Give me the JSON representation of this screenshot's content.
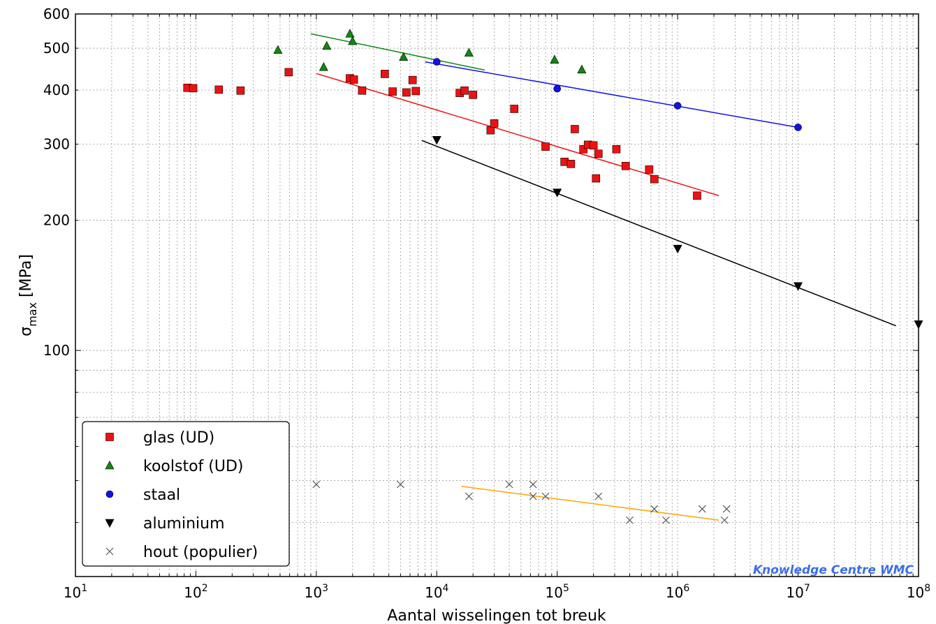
{
  "chart_data": {
    "type": "scatter",
    "xlabel": "Aantal wisselingen tot breuk",
    "ylabel_main": "σ",
    "ylabel_sub": "max",
    "ylabel_unit": " [MPa]",
    "xscale": "log",
    "yscale": "log",
    "xlim": [
      10,
      100000000
    ],
    "ylim": [
      30,
      600
    ],
    "grid": true,
    "legend_position": "lower-left",
    "watermark": "Knowledge Centre WMC",
    "x_ticks": [
      {
        "value": 10,
        "base": "10",
        "exp": "1"
      },
      {
        "value": 100,
        "base": "10",
        "exp": "2"
      },
      {
        "value": 1000,
        "base": "10",
        "exp": "3"
      },
      {
        "value": 10000,
        "base": "10",
        "exp": "4"
      },
      {
        "value": 100000,
        "base": "10",
        "exp": "5"
      },
      {
        "value": 1000000,
        "base": "10",
        "exp": "6"
      },
      {
        "value": 10000000,
        "base": "10",
        "exp": "7"
      },
      {
        "value": 100000000,
        "base": "10",
        "exp": "8"
      }
    ],
    "y_ticks": [
      {
        "value": 100,
        "label": "100"
      },
      {
        "value": 200,
        "label": "200"
      },
      {
        "value": 300,
        "label": "300"
      },
      {
        "value": 400,
        "label": "400"
      },
      {
        "value": 500,
        "label": "500"
      },
      {
        "value": 600,
        "label": "600"
      }
    ],
    "series": [
      {
        "name": "glas (UD)",
        "marker": "square",
        "color": "#ee1111",
        "points": [
          [
            85,
            405
          ],
          [
            95,
            404
          ],
          [
            155,
            401
          ],
          [
            235,
            399
          ],
          [
            590,
            440
          ],
          [
            1900,
            426
          ],
          [
            2050,
            423
          ],
          [
            2400,
            399
          ],
          [
            3700,
            436
          ],
          [
            4300,
            397
          ],
          [
            5600,
            395
          ],
          [
            6300,
            422
          ],
          [
            6700,
            398
          ],
          [
            15500,
            394
          ],
          [
            17000,
            399
          ],
          [
            20000,
            390
          ],
          [
            28000,
            323
          ],
          [
            30000,
            335
          ],
          [
            44000,
            362
          ],
          [
            80000,
            296
          ],
          [
            115000,
            273
          ],
          [
            130000,
            270
          ],
          [
            140000,
            325
          ],
          [
            165000,
            292
          ],
          [
            180000,
            299
          ],
          [
            200000,
            298
          ],
          [
            210000,
            250
          ],
          [
            220000,
            285
          ],
          [
            310000,
            292
          ],
          [
            370000,
            267
          ],
          [
            580000,
            262
          ],
          [
            640000,
            249
          ],
          [
            1450000,
            228
          ]
        ],
        "fit": [
          [
            1000,
            437
          ],
          [
            2200000,
            228
          ]
        ]
      },
      {
        "name": "koolstof (UD)",
        "marker": "triangle-up",
        "color": "#118811",
        "points": [
          [
            480,
            495
          ],
          [
            1150,
            452
          ],
          [
            1220,
            506
          ],
          [
            1900,
            540
          ],
          [
            2000,
            519
          ],
          [
            5300,
            477
          ],
          [
            18500,
            488
          ],
          [
            95000,
            470
          ],
          [
            160000,
            446
          ]
        ],
        "fit": [
          [
            900,
            540
          ],
          [
            25000,
            445
          ]
        ]
      },
      {
        "name": "staal",
        "marker": "circle",
        "color": "#1111ee",
        "points": [
          [
            10000,
            465
          ],
          [
            100000,
            403
          ],
          [
            1000000,
            368
          ],
          [
            10000000,
            328
          ]
        ],
        "fit": [
          [
            8000,
            465
          ],
          [
            10000000,
            328
          ]
        ]
      },
      {
        "name": "aluminium",
        "marker": "triangle-down",
        "color": "#000000",
        "points": [
          [
            10000,
            307
          ],
          [
            100000,
            232
          ],
          [
            1000000,
            172
          ],
          [
            10000000,
            141
          ],
          [
            100000000,
            115
          ]
        ],
        "fit": [
          [
            7500,
            306
          ],
          [
            65000000,
            114
          ]
        ]
      },
      {
        "name": "hout (populier)",
        "marker": "x",
        "color": "#555555",
        "points": [
          [
            1000,
            49
          ],
          [
            5000,
            49
          ],
          [
            18500,
            46
          ],
          [
            40000,
            49
          ],
          [
            63000,
            49
          ],
          [
            63000,
            46
          ],
          [
            80000,
            46
          ],
          [
            220000,
            46
          ],
          [
            400000,
            40.5
          ],
          [
            640000,
            43
          ],
          [
            800000,
            40.5
          ],
          [
            1600000,
            43
          ],
          [
            2450000,
            40.5
          ],
          [
            2550000,
            43
          ]
        ],
        "fit": [
          [
            16000,
            48.5
          ],
          [
            2200000,
            40.5
          ]
        ]
      }
    ]
  }
}
